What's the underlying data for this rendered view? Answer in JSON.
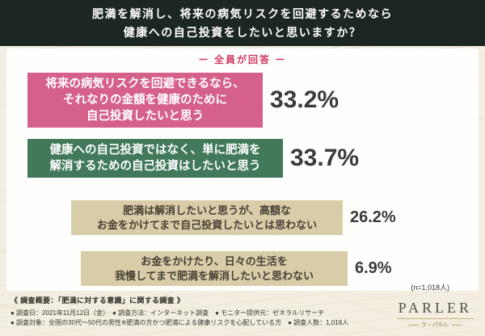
{
  "header": {
    "line1": "肥満を解消し、将来の病気リスクを回避するためなら",
    "line2": "健康への自己投資をしたいと思いますか？"
  },
  "survey_label": "ー 全員が回答 ー",
  "chart_data": {
    "type": "bar",
    "title": "肥満を解消し、将来の病気リスクを回避するためなら健康への自己投資をしたいと思いますか？（全員が回答）",
    "unit": "%",
    "n_label": "(n=1,018人)",
    "categories": [
      "将来の病気リスクを回避できるなら、それなりの金額を健康のために自己投資したいと思う",
      "健康への自己投資ではなく、単に肥満を解消するための自己投資はしたいと思う",
      "肥満は解消したいと思うが、高額なお金をかけてまで自己投資したいとは思わない",
      "お金をかけたり、日々の生活を我慢してまで肥満を解消したいと思わない"
    ],
    "values": [
      33.2,
      33.7,
      26.2,
      6.9
    ],
    "bars": [
      {
        "lines": [
          "将来の病気リスクを回避できるなら、",
          "それなりの金額を健康のために",
          "自己投資したいと思う"
        ],
        "value_label": "33.2%",
        "color": "#d5608c"
      },
      {
        "lines": [
          "健康への自己投資ではなく、単に肥満を",
          "解消するための自己投資はしたいと思う"
        ],
        "value_label": "33.7%",
        "color": "#41795a"
      },
      {
        "lines": [
          "肥満は解消したいと思うが、高額な",
          "お金をかけてまで自己投資したいとは思わない"
        ],
        "value_label": "26.2%",
        "color": "#d9cda9"
      },
      {
        "lines": [
          "お金をかけたり、日々の生活を",
          "我慢してまで肥満を解消したいと思わない"
        ],
        "value_label": "6.9%",
        "color": "#d9cda9"
      }
    ],
    "legend_position": "none",
    "grid": false
  },
  "footer": {
    "overview": "《 調査概要：「肥満に対する意識」に関する調査 》",
    "line1": "● 調査日：2021年11月12日（金）　● 調査方法：インターネット調査　● モニター提供元：ゼネラルリサーチ",
    "line2": "● 調査対象：全国の30代～50代の男性※肥満の方かつ肥満による健康リスクを心配している方　● 調査人数：1,018人"
  },
  "logo": {
    "name": "PARLER",
    "subtitle": "ラ・パルレ"
  },
  "colors": {
    "header_bg": "#1c2622",
    "accent_red": "#d23a64",
    "bar_pink": "#d5608c",
    "bar_green": "#41795a",
    "bar_beige": "#d9cda9",
    "background": "#f3eee1"
  }
}
